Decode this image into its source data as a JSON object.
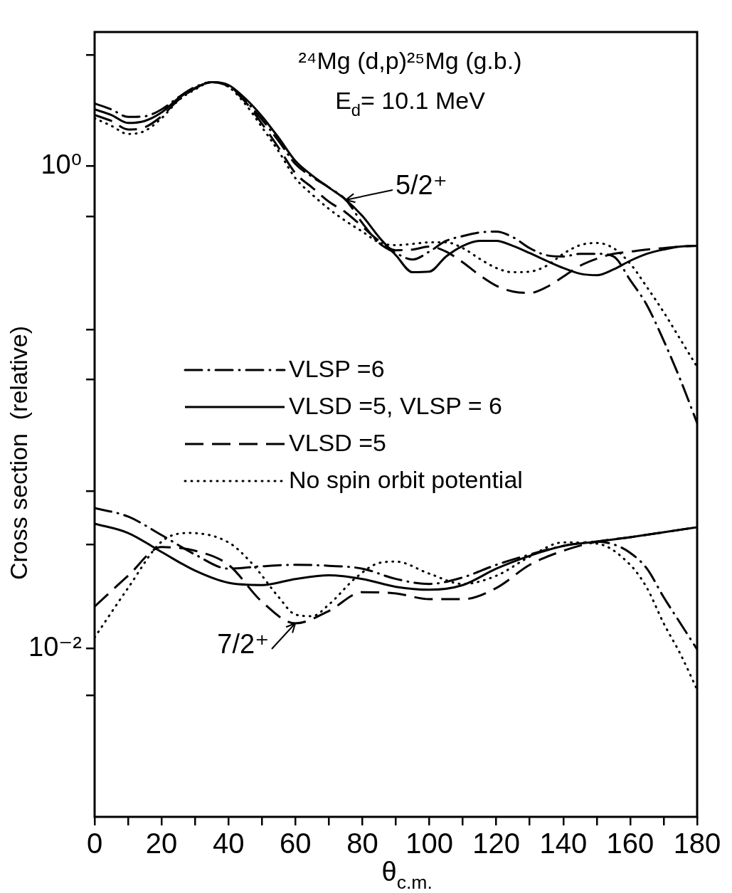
{
  "chart_data": {
    "type": "line",
    "title": "²⁴Mg (d,p)²⁵Mg (g.b.)",
    "subtitle": "E$_{d}$= 10.1 MeV",
    "xlabel": "θ$_{c.m.}$",
    "ylabel": "Cross section  (relative)",
    "log": true,
    "grid": false,
    "legend": "left",
    "xlim": [
      0,
      180
    ],
    "xticks": [
      0,
      {
        "value": 10,
        "label": null
      },
      20,
      {
        "value": 30,
        "label": null
      },
      40,
      {
        "value": 50,
        "label": null
      },
      60,
      {
        "value": 70,
        "label": null
      },
      80,
      {
        "value": 90,
        "label": null
      },
      100,
      {
        "value": 110,
        "label": null
      },
      120,
      {
        "value": 130,
        "label": null
      },
      140,
      {
        "value": 150,
        "label": null
      },
      160,
      {
        "value": 170,
        "label": null
      },
      180
    ],
    "ylim": [
      0.002,
      3.6
    ],
    "yticks": [
      {
        "value": 2.9,
        "label": null
      },
      {
        "value": 1,
        "label": "10⁰"
      },
      {
        "value": 0.62,
        "label": null
      },
      {
        "value": 0.21,
        "label": null
      },
      {
        "value": 0.13,
        "label": null
      },
      {
        "value": 0.045,
        "label": null
      },
      {
        "value": 0.027,
        "label": null
      },
      {
        "value": 0.01,
        "label": "10⁻²"
      },
      {
        "value": 0.0064,
        "label": null
      }
    ],
    "series": [
      {
        "name": "VLSP =6",
        "color": "#000000",
        "line_style": "dashdot",
        "x": [
          0,
          5,
          10,
          15,
          20,
          25,
          30,
          35,
          40,
          45,
          50,
          55,
          60,
          65,
          70,
          75,
          80,
          85,
          90,
          95,
          100,
          105,
          110,
          115,
          120,
          125,
          130,
          135,
          140,
          145,
          150,
          155,
          160,
          165,
          170,
          175,
          180
        ],
        "values": [
          1.82,
          1.72,
          1.6,
          1.61,
          1.72,
          1.93,
          2.13,
          2.23,
          2.16,
          1.87,
          1.56,
          1.27,
          1.02,
          0.903,
          0.815,
          0.726,
          0.58,
          0.48,
          0.436,
          0.41,
          0.442,
          0.49,
          0.513,
          0.531,
          0.535,
          0.507,
          0.457,
          0.427,
          0.422,
          0.433,
          0.433,
          0.422,
          0.337,
          0.265,
          0.189,
          0.13,
          0.0859
        ]
      },
      {
        "name": "VLSD =5, VLSP = 6",
        "color": "#000000",
        "line_style": "solid",
        "x": [
          0,
          5,
          10,
          15,
          20,
          25,
          30,
          35,
          40,
          45,
          50,
          55,
          60,
          65,
          70,
          75,
          80,
          85,
          90,
          95,
          100,
          105,
          110,
          115,
          120,
          125,
          130,
          135,
          140,
          145,
          150,
          155,
          160,
          165,
          170,
          175,
          180
        ],
        "values": [
          1.72,
          1.63,
          1.51,
          1.54,
          1.67,
          1.91,
          2.11,
          2.23,
          2.17,
          1.91,
          1.61,
          1.31,
          1.05,
          0.915,
          0.815,
          0.726,
          0.621,
          0.507,
          0.427,
          0.363,
          0.365,
          0.422,
          0.467,
          0.49,
          0.49,
          0.467,
          0.436,
          0.405,
          0.378,
          0.358,
          0.353,
          0.373,
          0.405,
          0.433,
          0.451,
          0.464,
          0.467
        ]
      },
      {
        "name": "VLSD =5",
        "color": "#000000",
        "line_style": "dashed",
        "x": [
          0,
          5,
          10,
          15,
          20,
          25,
          30,
          35,
          40,
          45,
          50,
          55,
          60,
          65,
          70,
          75,
          80,
          85,
          90,
          95,
          100,
          105,
          110,
          115,
          120,
          125,
          130,
          135,
          140,
          145,
          150,
          155,
          160,
          165,
          170,
          175,
          180
        ],
        "values": [
          1.63,
          1.54,
          1.42,
          1.45,
          1.61,
          1.88,
          2.1,
          2.23,
          2.14,
          1.85,
          1.5,
          1.19,
          0.934,
          0.815,
          0.712,
          0.643,
          0.561,
          0.49,
          0.448,
          0.451,
          0.464,
          0.442,
          0.399,
          0.353,
          0.319,
          0.302,
          0.298,
          0.315,
          0.348,
          0.386,
          0.413,
          0.433,
          0.442,
          0.451,
          0.457,
          0.464,
          0.467
        ]
      },
      {
        "name": "No spin orbit potential",
        "color": "#000000",
        "line_style": "dotted",
        "x": [
          0,
          5,
          10,
          15,
          20,
          25,
          30,
          35,
          40,
          45,
          50,
          55,
          60,
          65,
          70,
          75,
          80,
          85,
          90,
          95,
          100,
          105,
          110,
          115,
          120,
          125,
          130,
          135,
          140,
          145,
          150,
          155,
          160,
          165,
          170,
          175,
          180
        ],
        "values": [
          1.58,
          1.47,
          1.36,
          1.4,
          1.58,
          1.87,
          2.08,
          2.23,
          2.13,
          1.81,
          1.45,
          1.15,
          0.891,
          0.762,
          0.665,
          0.592,
          0.535,
          0.483,
          0.47,
          0.476,
          0.483,
          0.483,
          0.457,
          0.413,
          0.378,
          0.363,
          0.365,
          0.386,
          0.433,
          0.47,
          0.48,
          0.457,
          0.394,
          0.315,
          0.248,
          0.191,
          0.147
        ]
      },
      {
        "color": "#000000",
        "line_style": "dashdot",
        "x": [
          0,
          10,
          20,
          30,
          40,
          50,
          60,
          70,
          80,
          90,
          100,
          110,
          120,
          130,
          140,
          150,
          155,
          160,
          165,
          170,
          175,
          180
        ],
        "values": [
          0.0382,
          0.0352,
          0.0295,
          0.0245,
          0.0214,
          0.0219,
          0.0222,
          0.022,
          0.0214,
          0.0194,
          0.0185,
          0.0197,
          0.0222,
          0.0245,
          0.0266,
          0.0277,
          0.027,
          0.0249,
          0.0214,
          0.0163,
          0.0127,
          0.0099
        ]
      },
      {
        "color": "#000000",
        "line_style": "solid",
        "x": [
          0,
          10,
          20,
          30,
          40,
          50,
          60,
          70,
          80,
          90,
          100,
          110,
          120,
          130,
          140,
          150,
          160,
          170,
          180
        ],
        "values": [
          0.0329,
          0.0301,
          0.0251,
          0.021,
          0.0187,
          0.0183,
          0.0194,
          0.0201,
          0.0194,
          0.018,
          0.0175,
          0.0183,
          0.0214,
          0.0242,
          0.0266,
          0.0277,
          0.0289,
          0.0303,
          0.0318
        ]
      },
      {
        "color": "#000000",
        "line_style": "dashed",
        "x": [
          0,
          10,
          20,
          30,
          40,
          50,
          60,
          70,
          80,
          90,
          100,
          110,
          120,
          130,
          140,
          150,
          160,
          170,
          180
        ],
        "values": [
          0.0149,
          0.02,
          0.0263,
          0.0254,
          0.0222,
          0.0156,
          0.0127,
          0.0143,
          0.0171,
          0.0169,
          0.016,
          0.016,
          0.0178,
          0.0222,
          0.0254,
          0.0277,
          0.0289,
          0.0303,
          0.0318
        ]
      },
      {
        "color": "#000000",
        "line_style": "dotted",
        "x": [
          0,
          10,
          20,
          28,
          40,
          47,
          55,
          60,
          65,
          70,
          78,
          85,
          90,
          100,
          110,
          120,
          130,
          140,
          150,
          160,
          165,
          170,
          175,
          180
        ],
        "values": [
          0.0111,
          0.0178,
          0.0277,
          0.0301,
          0.0275,
          0.0225,
          0.0163,
          0.0138,
          0.0136,
          0.0152,
          0.0196,
          0.0226,
          0.0229,
          0.0204,
          0.0185,
          0.02,
          0.024,
          0.0275,
          0.0272,
          0.0222,
          0.0178,
          0.0127,
          0.00947,
          0.00674
        ]
      }
    ],
    "annotations": [
      {
        "text": "5/2⁺",
        "x": 75,
        "y": 0.726
      },
      {
        "text": "7/2⁺",
        "x": 60,
        "y": 0.0127
      }
    ]
  }
}
